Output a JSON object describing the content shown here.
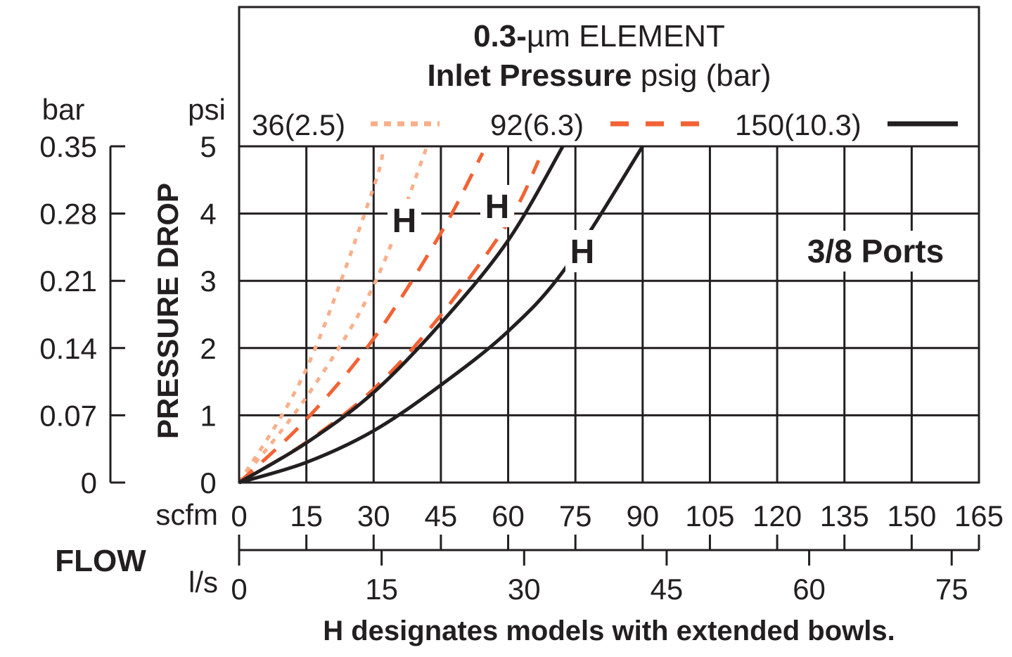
{
  "chart_data": {
    "type": "line",
    "title": "0.3-µm ELEMENT",
    "title_prefix": "0.3-",
    "title_unit": "µm ELEMENT",
    "legend_title_bold": "Inlet Pressure",
    "legend_title_rest": "psig (bar)",
    "legend_placement": "top",
    "annotation": "3/8 Ports",
    "footnote": "H designates models with extended bowls.",
    "h_marker": "H",
    "ylabel": "PRESSURE DROP",
    "y_unit_psi": "psi",
    "y_unit_bar": "bar",
    "xlabel": "FLOW",
    "x_unit_scfm": "scfm",
    "x_unit_ls": "l/s",
    "xlim": [
      0,
      165
    ],
    "ylim": [
      0,
      5
    ],
    "grid": true,
    "x_ticks_scfm": [
      "0",
      "15",
      "30",
      "45",
      "60",
      "75",
      "90",
      "105",
      "120",
      "135",
      "150",
      "165"
    ],
    "x_ticks_ls": [
      "0",
      "15",
      "30",
      "45",
      "60",
      "75"
    ],
    "y_ticks_psi": [
      "0",
      "1",
      "2",
      "3",
      "4",
      "5"
    ],
    "y_ticks_bar": [
      "0",
      "0.07",
      "0.14",
      "0.21",
      "0.28",
      "0.35"
    ],
    "series": [
      {
        "name": "36(2.5)",
        "style": "dotted",
        "color": "#F9AF8A",
        "variant": "standard",
        "x": [
          0,
          15,
          30,
          32
        ],
        "y": [
          0,
          1.69,
          4.39,
          5.0
        ]
      },
      {
        "name": "36(2.5)",
        "style": "dotted",
        "color": "#F9AF8A",
        "variant": "H",
        "x": [
          0,
          15,
          30,
          41.9
        ],
        "y": [
          0,
          1.27,
          2.93,
          5.0
        ]
      },
      {
        "name": "92(6.3)",
        "style": "dashed",
        "color": "#F26234",
        "variant": "standard",
        "x": [
          0,
          15,
          30,
          45,
          54.3
        ],
        "y": [
          0,
          0.94,
          2.14,
          3.71,
          4.9
        ]
      },
      {
        "name": "92(6.3)",
        "style": "dashed",
        "color": "#F26234",
        "variant": "H",
        "x": [
          0,
          15,
          30,
          45,
          60,
          66.8
        ],
        "y": [
          0,
          0.6,
          1.39,
          2.49,
          3.87,
          4.79
        ]
      },
      {
        "name": "150(10.3)",
        "style": "solid",
        "color": "#231F20",
        "variant": "standard",
        "x": [
          0,
          15,
          30,
          45,
          60,
          72.2
        ],
        "y": [
          0,
          0.59,
          1.34,
          2.37,
          3.6,
          5.0
        ]
      },
      {
        "name": "150(10.3)",
        "style": "solid",
        "color": "#231F20",
        "variant": "H",
        "x": [
          0,
          15,
          30,
          45,
          60,
          72.8,
          90
        ],
        "y": [
          0,
          0.3,
          0.77,
          1.45,
          2.25,
          3.19,
          5.0
        ]
      }
    ],
    "legend": [
      {
        "label": "36(2.5)",
        "style": "dotted",
        "color": "#F9AF8A"
      },
      {
        "label": "92(6.3)",
        "style": "dashed",
        "color": "#F26234"
      },
      {
        "label": "150(10.3)",
        "style": "solid",
        "color": "#231F20"
      }
    ]
  }
}
